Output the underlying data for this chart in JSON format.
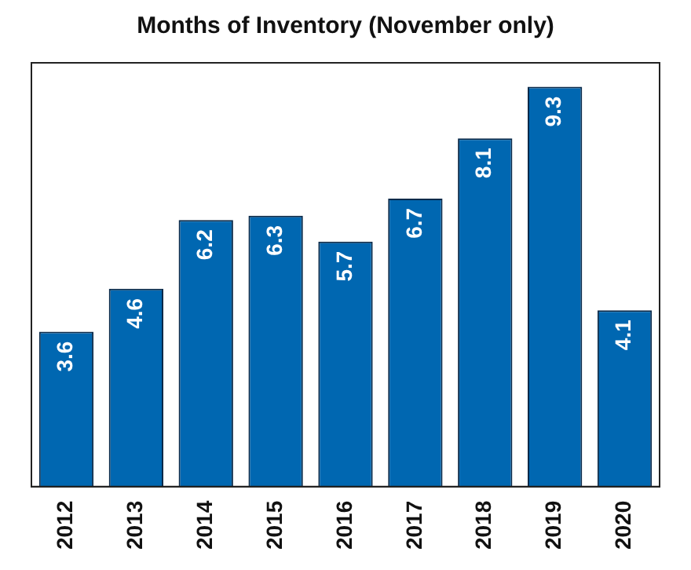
{
  "chart_data": {
    "type": "bar",
    "title": "Months of Inventory (November only)",
    "categories": [
      "2012",
      "2013",
      "2014",
      "2015",
      "2016",
      "2017",
      "2018",
      "2019",
      "2020"
    ],
    "values": [
      3.6,
      4.6,
      6.2,
      6.3,
      5.7,
      6.7,
      8.1,
      9.3,
      4.1
    ],
    "color": "#0067b1",
    "data_labels": true,
    "grid": false,
    "legend": false
  }
}
